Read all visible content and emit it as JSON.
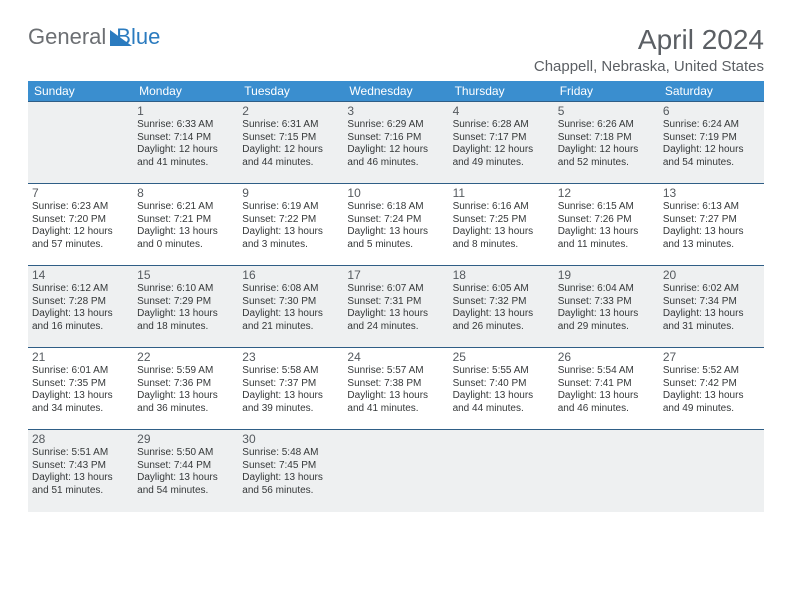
{
  "logo": {
    "text1": "General",
    "text2": "Blue"
  },
  "title": "April 2024",
  "location": "Chappell, Nebraska, United States",
  "colors": {
    "header_bg": "#3a8ecf",
    "header_text": "#ffffff",
    "cell_border": "#2f5e86",
    "shaded_bg": "#eef0f1",
    "text_dark": "#353839",
    "text_muted": "#5b5f64",
    "logo_gray": "#6c6f73",
    "logo_blue": "#2b7bbf"
  },
  "typography": {
    "title_fontsize": 28,
    "location_fontsize": 15,
    "header_fontsize": 12,
    "daynum_fontsize": 12,
    "cell_fontsize": 10
  },
  "dayHeaders": [
    "Sunday",
    "Monday",
    "Tuesday",
    "Wednesday",
    "Thursday",
    "Friday",
    "Saturday"
  ],
  "weeks": [
    [
      {
        "shaded": true
      },
      {
        "day": "1",
        "shaded": true,
        "sunrise": "Sunrise: 6:33 AM",
        "sunset": "Sunset: 7:14 PM",
        "dl1": "Daylight: 12 hours",
        "dl2": "and 41 minutes."
      },
      {
        "day": "2",
        "shaded": true,
        "sunrise": "Sunrise: 6:31 AM",
        "sunset": "Sunset: 7:15 PM",
        "dl1": "Daylight: 12 hours",
        "dl2": "and 44 minutes."
      },
      {
        "day": "3",
        "shaded": true,
        "sunrise": "Sunrise: 6:29 AM",
        "sunset": "Sunset: 7:16 PM",
        "dl1": "Daylight: 12 hours",
        "dl2": "and 46 minutes."
      },
      {
        "day": "4",
        "shaded": true,
        "sunrise": "Sunrise: 6:28 AM",
        "sunset": "Sunset: 7:17 PM",
        "dl1": "Daylight: 12 hours",
        "dl2": "and 49 minutes."
      },
      {
        "day": "5",
        "shaded": true,
        "sunrise": "Sunrise: 6:26 AM",
        "sunset": "Sunset: 7:18 PM",
        "dl1": "Daylight: 12 hours",
        "dl2": "and 52 minutes."
      },
      {
        "day": "6",
        "shaded": true,
        "sunrise": "Sunrise: 6:24 AM",
        "sunset": "Sunset: 7:19 PM",
        "dl1": "Daylight: 12 hours",
        "dl2": "and 54 minutes."
      }
    ],
    [
      {
        "day": "7",
        "sunrise": "Sunrise: 6:23 AM",
        "sunset": "Sunset: 7:20 PM",
        "dl1": "Daylight: 12 hours",
        "dl2": "and 57 minutes."
      },
      {
        "day": "8",
        "sunrise": "Sunrise: 6:21 AM",
        "sunset": "Sunset: 7:21 PM",
        "dl1": "Daylight: 13 hours",
        "dl2": "and 0 minutes."
      },
      {
        "day": "9",
        "sunrise": "Sunrise: 6:19 AM",
        "sunset": "Sunset: 7:22 PM",
        "dl1": "Daylight: 13 hours",
        "dl2": "and 3 minutes."
      },
      {
        "day": "10",
        "sunrise": "Sunrise: 6:18 AM",
        "sunset": "Sunset: 7:24 PM",
        "dl1": "Daylight: 13 hours",
        "dl2": "and 5 minutes."
      },
      {
        "day": "11",
        "sunrise": "Sunrise: 6:16 AM",
        "sunset": "Sunset: 7:25 PM",
        "dl1": "Daylight: 13 hours",
        "dl2": "and 8 minutes."
      },
      {
        "day": "12",
        "sunrise": "Sunrise: 6:15 AM",
        "sunset": "Sunset: 7:26 PM",
        "dl1": "Daylight: 13 hours",
        "dl2": "and 11 minutes."
      },
      {
        "day": "13",
        "sunrise": "Sunrise: 6:13 AM",
        "sunset": "Sunset: 7:27 PM",
        "dl1": "Daylight: 13 hours",
        "dl2": "and 13 minutes."
      }
    ],
    [
      {
        "day": "14",
        "shaded": true,
        "sunrise": "Sunrise: 6:12 AM",
        "sunset": "Sunset: 7:28 PM",
        "dl1": "Daylight: 13 hours",
        "dl2": "and 16 minutes."
      },
      {
        "day": "15",
        "shaded": true,
        "sunrise": "Sunrise: 6:10 AM",
        "sunset": "Sunset: 7:29 PM",
        "dl1": "Daylight: 13 hours",
        "dl2": "and 18 minutes."
      },
      {
        "day": "16",
        "shaded": true,
        "sunrise": "Sunrise: 6:08 AM",
        "sunset": "Sunset: 7:30 PM",
        "dl1": "Daylight: 13 hours",
        "dl2": "and 21 minutes."
      },
      {
        "day": "17",
        "shaded": true,
        "sunrise": "Sunrise: 6:07 AM",
        "sunset": "Sunset: 7:31 PM",
        "dl1": "Daylight: 13 hours",
        "dl2": "and 24 minutes."
      },
      {
        "day": "18",
        "shaded": true,
        "sunrise": "Sunrise: 6:05 AM",
        "sunset": "Sunset: 7:32 PM",
        "dl1": "Daylight: 13 hours",
        "dl2": "and 26 minutes."
      },
      {
        "day": "19",
        "shaded": true,
        "sunrise": "Sunrise: 6:04 AM",
        "sunset": "Sunset: 7:33 PM",
        "dl1": "Daylight: 13 hours",
        "dl2": "and 29 minutes."
      },
      {
        "day": "20",
        "shaded": true,
        "sunrise": "Sunrise: 6:02 AM",
        "sunset": "Sunset: 7:34 PM",
        "dl1": "Daylight: 13 hours",
        "dl2": "and 31 minutes."
      }
    ],
    [
      {
        "day": "21",
        "sunrise": "Sunrise: 6:01 AM",
        "sunset": "Sunset: 7:35 PM",
        "dl1": "Daylight: 13 hours",
        "dl2": "and 34 minutes."
      },
      {
        "day": "22",
        "sunrise": "Sunrise: 5:59 AM",
        "sunset": "Sunset: 7:36 PM",
        "dl1": "Daylight: 13 hours",
        "dl2": "and 36 minutes."
      },
      {
        "day": "23",
        "sunrise": "Sunrise: 5:58 AM",
        "sunset": "Sunset: 7:37 PM",
        "dl1": "Daylight: 13 hours",
        "dl2": "and 39 minutes."
      },
      {
        "day": "24",
        "sunrise": "Sunrise: 5:57 AM",
        "sunset": "Sunset: 7:38 PM",
        "dl1": "Daylight: 13 hours",
        "dl2": "and 41 minutes."
      },
      {
        "day": "25",
        "sunrise": "Sunrise: 5:55 AM",
        "sunset": "Sunset: 7:40 PM",
        "dl1": "Daylight: 13 hours",
        "dl2": "and 44 minutes."
      },
      {
        "day": "26",
        "sunrise": "Sunrise: 5:54 AM",
        "sunset": "Sunset: 7:41 PM",
        "dl1": "Daylight: 13 hours",
        "dl2": "and 46 minutes."
      },
      {
        "day": "27",
        "sunrise": "Sunrise: 5:52 AM",
        "sunset": "Sunset: 7:42 PM",
        "dl1": "Daylight: 13 hours",
        "dl2": "and 49 minutes."
      }
    ],
    [
      {
        "day": "28",
        "shaded": true,
        "sunrise": "Sunrise: 5:51 AM",
        "sunset": "Sunset: 7:43 PM",
        "dl1": "Daylight: 13 hours",
        "dl2": "and 51 minutes."
      },
      {
        "day": "29",
        "shaded": true,
        "sunrise": "Sunrise: 5:50 AM",
        "sunset": "Sunset: 7:44 PM",
        "dl1": "Daylight: 13 hours",
        "dl2": "and 54 minutes."
      },
      {
        "day": "30",
        "shaded": true,
        "sunrise": "Sunrise: 5:48 AM",
        "sunset": "Sunset: 7:45 PM",
        "dl1": "Daylight: 13 hours",
        "dl2": "and 56 minutes."
      },
      {
        "shaded": true
      },
      {
        "shaded": true
      },
      {
        "shaded": true
      },
      {
        "shaded": true
      }
    ]
  ]
}
